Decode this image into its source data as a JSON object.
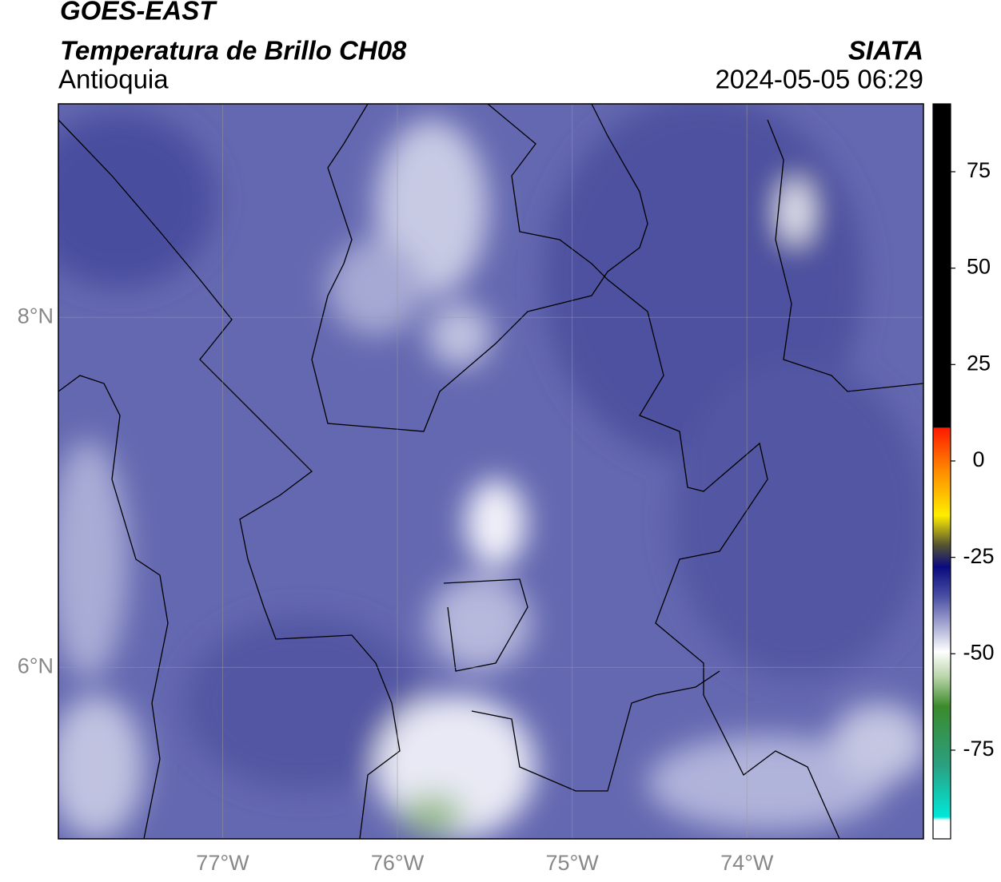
{
  "header": {
    "title": "GOES-EAST",
    "subtitle": "Temperatura de Brillo CH08",
    "region": "Antioquia",
    "source": "SIATA",
    "timestamp": "2024-05-05 06:29"
  },
  "map": {
    "xlim": [
      -77.94,
      -72.99
    ],
    "ylim": [
      5.02,
      9.22
    ],
    "xticks": [
      {
        "value": -77,
        "label": "77°W"
      },
      {
        "value": -76,
        "label": "76°W"
      },
      {
        "value": -75,
        "label": "75°W"
      },
      {
        "value": -74,
        "label": "74°W"
      }
    ],
    "yticks": [
      {
        "value": 6,
        "label": "6°N"
      },
      {
        "value": 8,
        "label": "8°N"
      }
    ],
    "grid": true
  },
  "colorbar": {
    "lim": [
      -98,
      92.6
    ],
    "ticks": [
      -75,
      -50,
      -25,
      0,
      25,
      50,
      75
    ]
  }
}
